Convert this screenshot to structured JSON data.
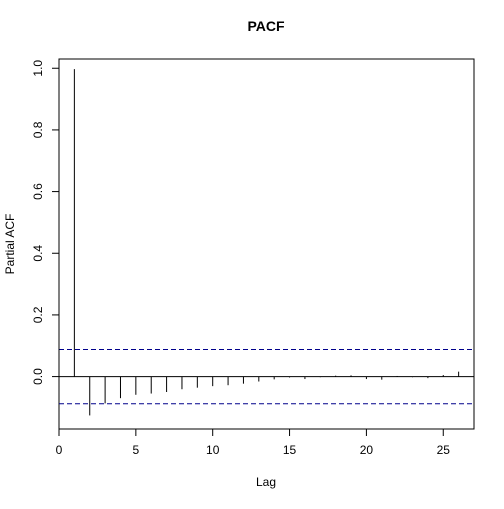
{
  "chart_data": {
    "type": "bar",
    "title": "PACF",
    "xlabel": "Lag",
    "ylabel": "Partial ACF",
    "xlim": [
      0,
      27
    ],
    "ylim": [
      -0.17,
      1.03
    ],
    "x_ticks": [
      0,
      5,
      10,
      15,
      20,
      25
    ],
    "y_ticks": [
      0.0,
      0.2,
      0.4,
      0.6,
      0.8,
      1.0
    ],
    "x_tick_labels": [
      "0",
      "5",
      "10",
      "15",
      "20",
      "25"
    ],
    "y_tick_labels": [
      "0.0",
      "0.2",
      "0.4",
      "0.6",
      "0.8",
      "1.0"
    ],
    "confidence_bounds": [
      0.088,
      -0.088
    ],
    "confidence_color": "#00008b",
    "bar_color": "#000000",
    "grid": false,
    "lags": [
      1,
      2,
      3,
      4,
      5,
      6,
      7,
      8,
      9,
      10,
      11,
      12,
      13,
      14,
      15,
      16,
      17,
      18,
      19,
      20,
      21,
      22,
      23,
      24,
      25,
      26
    ],
    "values": [
      0.997,
      -0.126,
      -0.087,
      -0.07,
      -0.059,
      -0.055,
      -0.05,
      -0.041,
      -0.036,
      -0.031,
      -0.028,
      -0.023,
      -0.016,
      -0.009,
      -0.003,
      -0.008,
      -0.002,
      0.003,
      0.004,
      -0.008,
      -0.01,
      0.002,
      -0.002,
      -0.005,
      0.005,
      0.016
    ]
  }
}
